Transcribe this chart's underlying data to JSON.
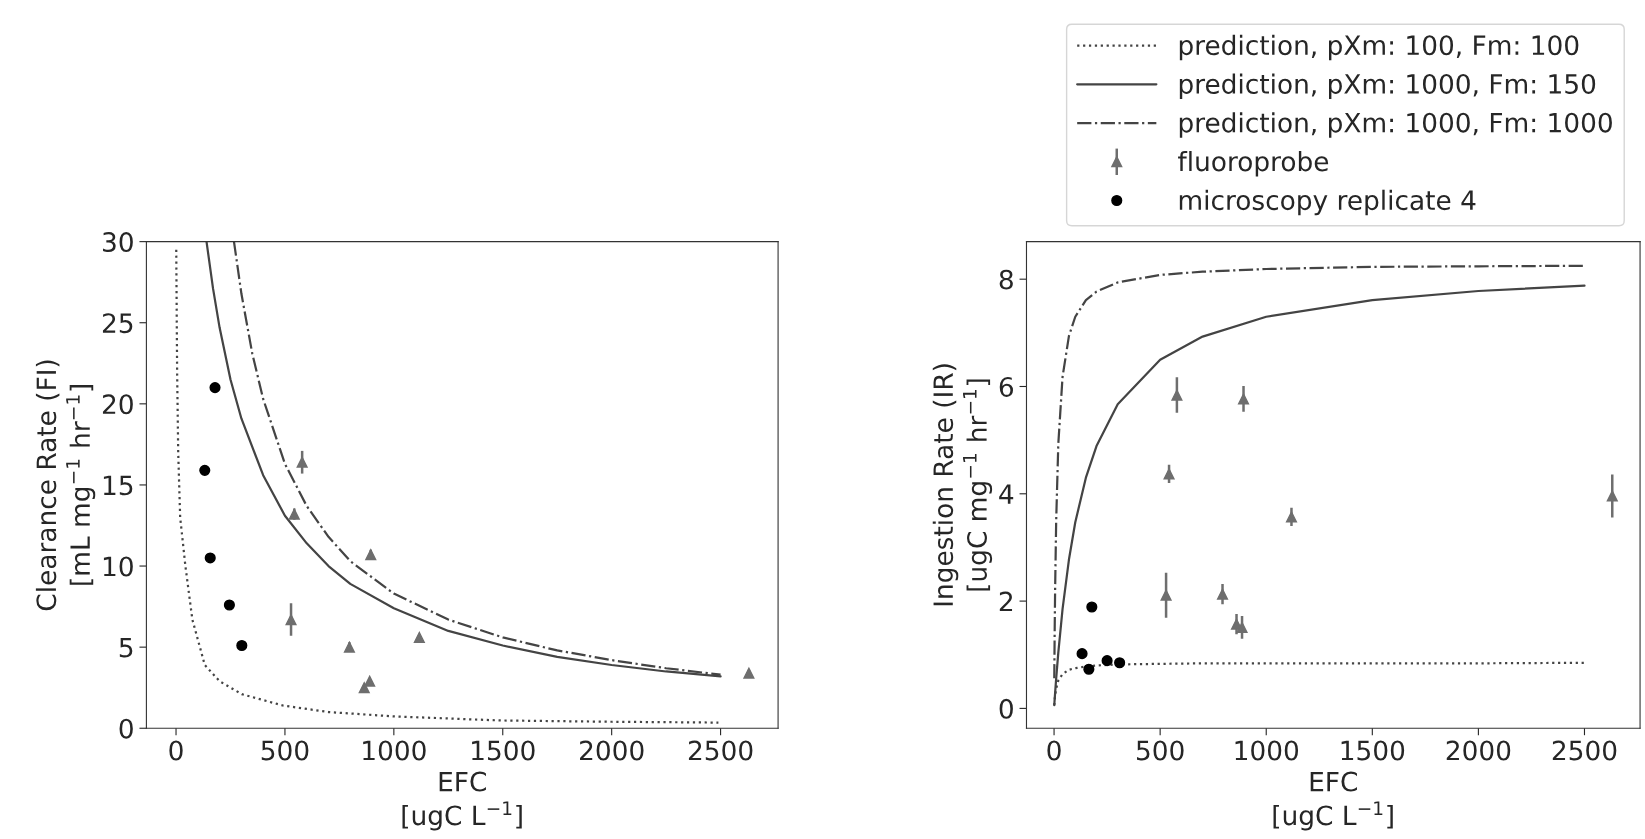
{
  "chart_data": [
    {
      "type": "line",
      "xlabel": "EFC\n[ugC L$^{−1}$]",
      "ylabel": "Clearance Rate (FI)\n[mL mg$^{−1}$ hr$^{−1}$]",
      "xlim": [
        -136,
        2764
      ],
      "ylim": [
        0,
        30
      ],
      "xticks": [
        0,
        500,
        1000,
        1500,
        2000,
        2500
      ],
      "yticks": [
        0,
        5,
        10,
        15,
        20,
        25,
        30
      ],
      "grid": false,
      "legend": false,
      "series": [
        {
          "line_style": "dotted",
          "marker": "none",
          "color": "#444444",
          "x": [
            1,
            5,
            10,
            19,
            43,
            75,
            132,
            200,
            302,
            491,
            700,
            1000,
            1490,
            2000,
            2490
          ],
          "values": [
            29.5,
            22,
            17,
            13,
            10,
            6.7,
            3.9,
            2.9,
            2.1,
            1.4,
            1.0,
            0.73,
            0.48,
            0.4,
            0.35
          ]
        },
        {
          "line_style": "solid",
          "marker": "none",
          "color": "#444444",
          "x": [
            140,
            170,
            200,
            250,
            300,
            400,
            500,
            600,
            700,
            800,
            1000,
            1250,
            1500,
            1750,
            2000,
            2250,
            2500
          ],
          "values": [
            30.0,
            27.1,
            24.7,
            21.5,
            19.1,
            15.6,
            13.1,
            11.4,
            10.0,
            8.9,
            7.4,
            6.0,
            5.1,
            4.4,
            3.9,
            3.5,
            3.2
          ]
        },
        {
          "line_style": "dashdot",
          "marker": "none",
          "color": "#444444",
          "x": [
            266,
            300,
            350,
            400,
            500,
            600,
            700,
            800,
            1000,
            1250,
            1500,
            1750,
            2000,
            2250,
            2500
          ],
          "values": [
            30.0,
            26.8,
            23.1,
            20.3,
            16.3,
            13.7,
            11.8,
            10.3,
            8.3,
            6.7,
            5.6,
            4.8,
            4.2,
            3.7,
            3.3
          ]
        },
        {
          "type": "scatter",
          "marker": "triangle",
          "color": "#6e6e6e",
          "x": [
            528,
            543,
            579,
            796,
            864,
            889,
            894,
            1117,
            2630
          ],
          "values": [
            6.7,
            13.2,
            16.4,
            5.0,
            2.5,
            2.9,
            10.7,
            5.6,
            3.4
          ],
          "errors": [
            1.0,
            0.35,
            0.7,
            0.3,
            0.2,
            0.2,
            0.3,
            0.15,
            0.2
          ]
        },
        {
          "type": "scatter",
          "marker": "circle",
          "color": "#000000",
          "x": [
            132,
            157,
            179,
            245,
            302
          ],
          "values": [
            15.9,
            10.5,
            21.0,
            7.6,
            5.1
          ]
        }
      ]
    },
    {
      "type": "line",
      "xlabel": "EFC\n[ugC L$^{−1}$]",
      "ylabel": "Ingestion Rate (IR)\n[ugC mg$^{−1}$ hr$^{−1}$]",
      "xlim": [
        -130,
        2762
      ],
      "ylim": [
        -0.37,
        8.7
      ],
      "xticks": [
        0,
        500,
        1000,
        1500,
        2000,
        2500
      ],
      "yticks": [
        0,
        2,
        4,
        6,
        8
      ],
      "grid": false,
      "legend": "top right",
      "series": [
        {
          "name": "prediction, pXm: 100, Fm: 100",
          "line_style": "dotted",
          "marker": "none",
          "color": "#444444",
          "x": [
            1,
            3,
            5,
            10,
            20,
            40,
            70,
            100,
            150,
            200,
            300,
            500,
            700,
            1000,
            1500,
            2000,
            2500
          ],
          "values": [
            0.06,
            0.16,
            0.24,
            0.37,
            0.52,
            0.64,
            0.72,
            0.75,
            0.78,
            0.8,
            0.82,
            0.83,
            0.84,
            0.84,
            0.84,
            0.84,
            0.85
          ]
        },
        {
          "name": "prediction, pXm: 1000, Fm: 150",
          "line_style": "solid",
          "marker": "none",
          "color": "#444444",
          "x": [
            1,
            3,
            5,
            10,
            20,
            40,
            70,
            100,
            150,
            200,
            300,
            500,
            700,
            1000,
            1500,
            2000,
            2500
          ],
          "values": [
            0.06,
            0.18,
            0.29,
            0.56,
            1.04,
            1.85,
            2.77,
            3.47,
            4.3,
            4.89,
            5.67,
            6.5,
            6.93,
            7.3,
            7.61,
            7.78,
            7.88
          ]
        },
        {
          "name": "prediction, pXm: 1000, Fm: 1000",
          "line_style": "dashdot",
          "marker": "none",
          "color": "#444444",
          "x": [
            1,
            3,
            5,
            10,
            20,
            40,
            70,
            100,
            150,
            200,
            300,
            500,
            700,
            1000,
            1500,
            2000,
            2500
          ],
          "values": [
            0.56,
            1.49,
            2.22,
            3.5,
            4.93,
            6.18,
            6.94,
            7.3,
            7.61,
            7.77,
            7.94,
            8.08,
            8.14,
            8.19,
            8.23,
            8.24,
            8.25
          ]
        },
        {
          "type": "scatter",
          "name": "fluoroprobe",
          "marker": "triangle",
          "color": "#6e6e6e",
          "x": [
            528,
            542,
            579,
            794,
            860,
            886,
            893,
            1119,
            2631
          ],
          "values": [
            2.11,
            4.37,
            5.84,
            2.13,
            1.57,
            1.51,
            5.77,
            3.57,
            3.96
          ],
          "errors": [
            0.42,
            0.17,
            0.33,
            0.19,
            0.19,
            0.21,
            0.24,
            0.17,
            0.4
          ]
        },
        {
          "type": "scatter",
          "name": "microscopy replicate 4",
          "marker": "circle",
          "color": "#000000",
          "x": [
            132,
            164,
            178,
            250,
            309
          ],
          "values": [
            1.02,
            0.73,
            1.89,
            0.89,
            0.85
          ]
        }
      ]
    }
  ]
}
